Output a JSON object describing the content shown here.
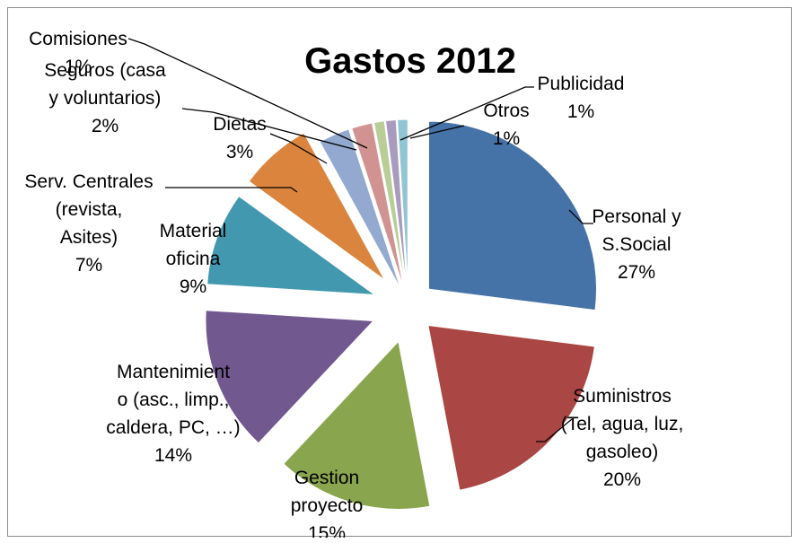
{
  "chart_data": {
    "type": "pie",
    "title": "Gastos 2012",
    "slices": [
      {
        "label_lines": [
          "Personal y",
          "S.Social"
        ],
        "value_label": "27%",
        "value": 27,
        "color": "#4572a7"
      },
      {
        "label_lines": [
          "Suministros",
          "(Tel, agua, luz,",
          "gasoleo)"
        ],
        "value_label": "20%",
        "value": 20,
        "color": "#aa4643"
      },
      {
        "label_lines": [
          "Gestion",
          "proyecto"
        ],
        "value_label": "15%",
        "value": 15,
        "color": "#89a54e"
      },
      {
        "label_lines": [
          "Mantenimient",
          "o (asc., limp.,",
          "caldera, PC, …)"
        ],
        "value_label": "14%",
        "value": 14,
        "color": "#71588f"
      },
      {
        "label_lines": [
          "Material",
          "oficina"
        ],
        "value_label": "9%",
        "value": 9,
        "color": "#4198af"
      },
      {
        "label_lines": [
          "Serv. Centrales",
          "(revista,",
          "Asites)"
        ],
        "value_label": "7%",
        "value": 7,
        "color": "#db843d"
      },
      {
        "label_lines": [
          "Dietas"
        ],
        "value_label": "3%",
        "value": 3,
        "color": "#93a9cf"
      },
      {
        "label_lines": [
          "Seguros (casa",
          "y voluntarios)"
        ],
        "value_label": "2%",
        "value": 2,
        "color": "#d19392"
      },
      {
        "label_lines": [
          "Comisiones"
        ],
        "value_label": "1%",
        "value": 1,
        "color": "#b9cd96"
      },
      {
        "label_lines": [
          "Otros"
        ],
        "value_label": "1%",
        "value": 1,
        "color": "#a99bbd"
      },
      {
        "label_lines": [
          "Publicidad"
        ],
        "value_label": "1%",
        "value": 1,
        "color": "#92c5d3"
      }
    ],
    "start_angle_deg": 0,
    "direction": "clockwise",
    "legend": "none"
  }
}
